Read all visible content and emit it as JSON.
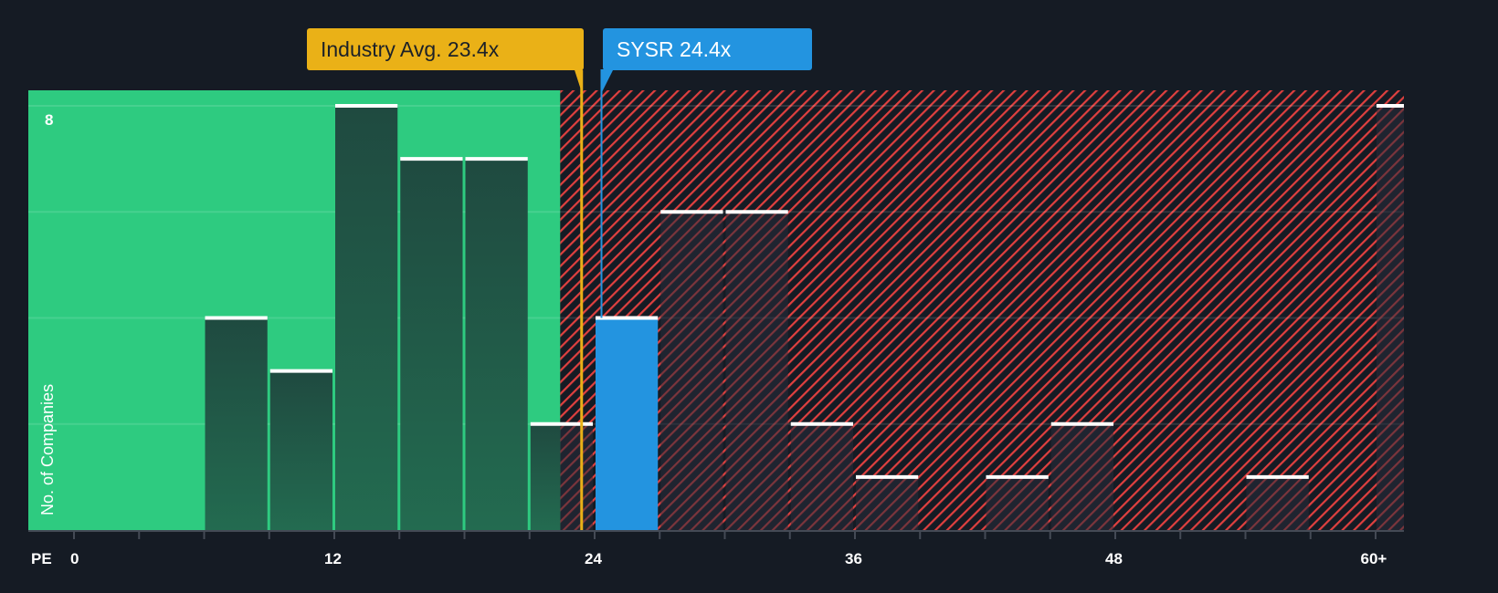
{
  "callouts": {
    "industry": {
      "label": "Industry Avg. 23.4x",
      "value": 23.4,
      "color": "#eab117"
    },
    "company": {
      "label": "SYSR 24.4x",
      "ticker": "SYSR",
      "value": 24.4,
      "color": "#2394e0"
    }
  },
  "axis": {
    "x_prefix": "PE",
    "x_ticks": [
      "0",
      "12",
      "24",
      "36",
      "48",
      "60+"
    ],
    "y_label": "No. of Companies",
    "y_top_tick": "8"
  },
  "colors": {
    "background": "#151b24",
    "undervalued_zone": "#2ecb80",
    "undervalued_bar": "#1f4a40",
    "overvalued_hatch": "#e0403f",
    "company_bar": "#2394e0",
    "industry_line": "#eab117"
  },
  "chart_data": {
    "type": "bar",
    "title": "",
    "xlabel": "PE",
    "ylabel": "No. of Companies",
    "bin_width": 3,
    "x_range": [
      0,
      63
    ],
    "ylim": [
      0,
      8
    ],
    "grid": true,
    "legend": "none",
    "categories": [
      "0-3",
      "3-6",
      "6-9",
      "9-12",
      "12-15",
      "15-18",
      "18-21",
      "21-24",
      "24-27",
      "27-30",
      "30-33",
      "33-36",
      "36-39",
      "39-42",
      "42-45",
      "45-48",
      "48-51",
      "51-54",
      "54-57",
      "57-60",
      "60+"
    ],
    "values": [
      0,
      0,
      4,
      3,
      8,
      7,
      7,
      2,
      4,
      6,
      6,
      2,
      1,
      0,
      1,
      2,
      0,
      0,
      1,
      0,
      8
    ],
    "highlight_bin": "24-27",
    "annotations": [
      {
        "type": "vline",
        "label": "Industry Avg. 23.4x",
        "x": 23.4
      },
      {
        "type": "vline",
        "label": "SYSR 24.4x",
        "x": 24.4
      }
    ],
    "zones": [
      {
        "name": "below-fair",
        "from": 0,
        "to": 22.5,
        "color": "#2ecb80"
      },
      {
        "name": "above-fair",
        "from": 22.5,
        "to": 63,
        "pattern": "red-hatch"
      }
    ]
  }
}
